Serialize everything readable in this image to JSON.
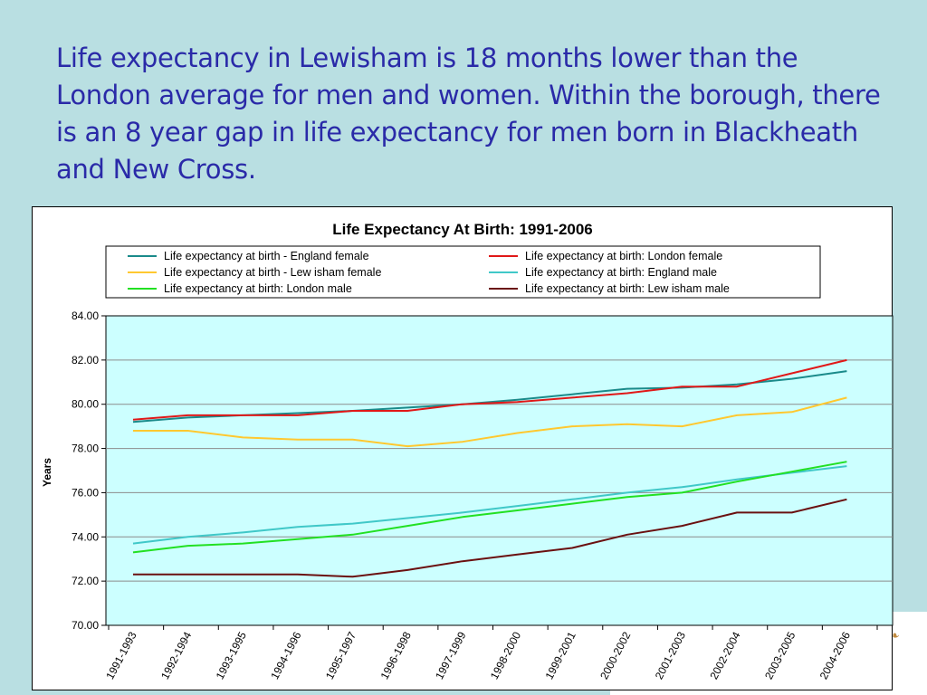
{
  "slide": {
    "headline": "Life expectancy in Lewisham is 18 months lower than the London average for men and women. Within the borough, there is an 8 year gap in life expectancy for men born in Blackheath and New Cross."
  },
  "colors": {
    "background": "#b9dfe2",
    "plot_area": "#ccffff",
    "headline": "#2a2aa8"
  },
  "chart_data": {
    "type": "line",
    "title": "Life Expectancy At Birth: 1991-2006",
    "xlabel": "",
    "ylabel": "Years",
    "ylim": [
      70,
      84
    ],
    "yticks": [
      "84.00",
      "82.00",
      "80.00",
      "78.00",
      "76.00",
      "74.00",
      "72.00",
      "70.00"
    ],
    "grid": true,
    "legend_position": "top",
    "categories": [
      "1991-1993",
      "1992-1994",
      "1993-1995",
      "1994-1996",
      "1995-1997",
      "1996-1998",
      "1997-1999",
      "1998-2000",
      "1999-2001",
      "2000-2002",
      "2001-2003",
      "2002-2004",
      "2003-2005",
      "2004-2006"
    ],
    "series": [
      {
        "name": "Life expectancy at birth - England female",
        "color": "#1a8a8a",
        "values": [
          79.2,
          79.4,
          79.5,
          79.6,
          79.7,
          79.85,
          80.0,
          80.2,
          80.45,
          80.7,
          80.75,
          80.9,
          81.15,
          81.5
        ]
      },
      {
        "name": "Life expectancy at birth: London female",
        "color": "#e01818",
        "values": [
          79.3,
          79.5,
          79.5,
          79.5,
          79.7,
          79.7,
          80.0,
          80.1,
          80.3,
          80.5,
          80.8,
          80.8,
          81.4,
          82.0
        ]
      },
      {
        "name": "Life expectancy at birth - Lew isham female",
        "color": "#ffc830",
        "values": [
          78.8,
          78.8,
          78.5,
          78.4,
          78.4,
          78.1,
          78.3,
          78.7,
          79.0,
          79.1,
          79.0,
          79.5,
          79.65,
          80.3
        ]
      },
      {
        "name": "Life expectancy at birth: England male",
        "color": "#40c8c8",
        "values": [
          73.7,
          74.0,
          74.2,
          74.45,
          74.6,
          74.85,
          75.1,
          75.4,
          75.7,
          76.0,
          76.25,
          76.6,
          76.9,
          77.2
        ]
      },
      {
        "name": "Life expectancy at birth: London male",
        "color": "#22e022",
        "values": [
          73.3,
          73.6,
          73.7,
          73.9,
          74.1,
          74.5,
          74.9,
          75.2,
          75.5,
          75.8,
          76.0,
          76.5,
          76.95,
          77.4
        ]
      },
      {
        "name": "Life expectancy at birth: Lew isham male",
        "color": "#6a1010",
        "values": [
          72.3,
          72.3,
          72.3,
          72.3,
          72.2,
          72.5,
          72.9,
          73.2,
          73.5,
          74.1,
          74.5,
          75.1,
          75.1,
          75.7
        ]
      }
    ]
  }
}
